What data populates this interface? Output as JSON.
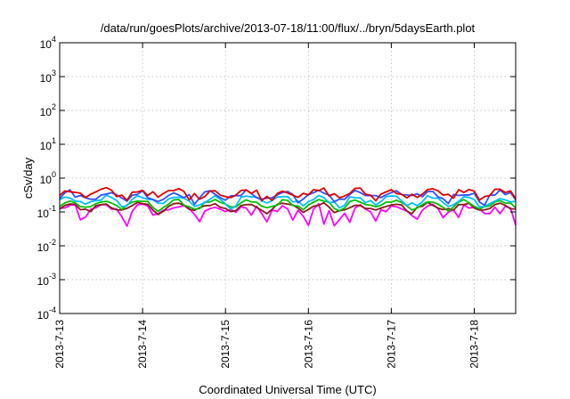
{
  "chart_data": {
    "type": "line",
    "title": "/data/run/goesPlots/archive/2013-07-18/11:00/flux/../bryn/5daysEarth.plot",
    "xlabel": "Coordinated Universal Time (UTC)",
    "ylabel": "cSv/day",
    "yscale": "log",
    "ylim": [
      0.0001,
      10000
    ],
    "y_ticks": [
      {
        "value": 0.0001,
        "base": "10",
        "exp": "-4"
      },
      {
        "value": 0.001,
        "base": "10",
        "exp": "-3"
      },
      {
        "value": 0.01,
        "base": "10",
        "exp": "-2"
      },
      {
        "value": 0.1,
        "base": "10",
        "exp": "-1"
      },
      {
        "value": 1,
        "base": "10",
        "exp": "0"
      },
      {
        "value": 10,
        "base": "10",
        "exp": "1"
      },
      {
        "value": 100,
        "base": "10",
        "exp": "2"
      },
      {
        "value": 1000,
        "base": "10",
        "exp": "3"
      },
      {
        "value": 10000,
        "base": "10",
        "exp": "4"
      }
    ],
    "xlim": [
      "2013-07-13",
      "2013-07-18 12:00"
    ],
    "x_ticks": [
      "2013-7-13",
      "2013-7-14",
      "2013-7-15",
      "2013-7-16",
      "2013-7-17",
      "2013-7-18"
    ],
    "grid": true,
    "sampling_hours": 1.5,
    "series": [
      {
        "color": "#ff00ff",
        "base": 0.12,
        "noise": 0.25,
        "dips": true
      },
      {
        "color": "#8b1a1a",
        "base": 0.14,
        "noise": 0.15
      },
      {
        "color": "#00c000",
        "base": 0.17,
        "noise": 0.15
      },
      {
        "color": "#00bfff",
        "base": 0.22,
        "noise": 0.2
      },
      {
        "color": "#3050ff",
        "base": 0.31,
        "noise": 0.25
      },
      {
        "color": "#e00000",
        "base": 0.36,
        "noise": 0.25
      }
    ],
    "dip_dates": [
      "2013-07-13 06:00",
      "2013-07-13 20:00",
      "2013-07-14 16:00",
      "2013-07-15 08:00",
      "2013-07-15 12:00",
      "2013-07-15 20:00",
      "2013-07-16 00:00",
      "2013-07-16 04:00",
      "2013-07-16 08:00",
      "2013-07-16 12:00",
      "2013-07-16 20:00",
      "2013-07-17 08:00",
      "2013-07-17 20:00",
      "2013-07-18 08:00",
      "2013-07-18 12:00"
    ]
  }
}
